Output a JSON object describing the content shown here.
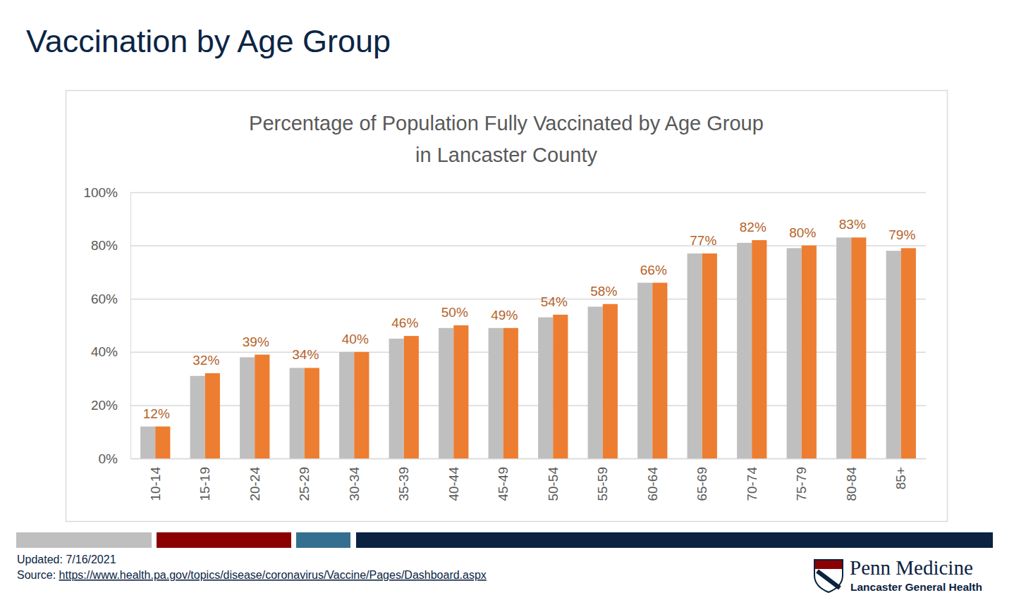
{
  "page": {
    "heading": "Vaccination by Age Group",
    "updated": "Updated: 7/16/2021",
    "source_label": "Source: ",
    "source_url": "https://www.health.pa.gov/topics/disease/coronavirus/Vaccine/Pages/Dashboard.aspx",
    "logo": {
      "name": "Penn Medicine",
      "subtitle": "Lancaster General Health"
    }
  },
  "chart_data": {
    "type": "bar",
    "title": [
      "Percentage of Population Fully Vaccinated by Age Group",
      "in Lancaster County"
    ],
    "categories": [
      "10-14",
      "15-19",
      "20-24",
      "25-29",
      "30-34",
      "35-39",
      "40-44",
      "45-49",
      "50-54",
      "55-59",
      "60-64",
      "65-69",
      "70-74",
      "75-79",
      "80-84",
      "85+"
    ],
    "series": [
      {
        "color": "#bfbfbf",
        "data_labels": false,
        "values": [
          12,
          31,
          38,
          34,
          40,
          45,
          49,
          49,
          53,
          57,
          66,
          77,
          81,
          79,
          83,
          78
        ]
      },
      {
        "color": "#ed7d31",
        "data_labels": true,
        "values": [
          12,
          32,
          39,
          34,
          40,
          46,
          50,
          49,
          54,
          58,
          66,
          77,
          82,
          80,
          83,
          79
        ],
        "value_labels": [
          "12%",
          "32%",
          "39%",
          "34%",
          "40%",
          "46%",
          "50%",
          "49%",
          "54%",
          "58%",
          "66%",
          "77%",
          "82%",
          "80%",
          "83%",
          "79%"
        ]
      }
    ],
    "ylim": [
      0,
      100
    ],
    "yticks": [
      {
        "value": 0,
        "label": "0%"
      },
      {
        "value": 20,
        "label": "20%"
      },
      {
        "value": 40,
        "label": "40%"
      },
      {
        "value": 60,
        "label": "60%"
      },
      {
        "value": 80,
        "label": "80%"
      },
      {
        "value": 100,
        "label": "100%"
      }
    ],
    "grid": true
  }
}
